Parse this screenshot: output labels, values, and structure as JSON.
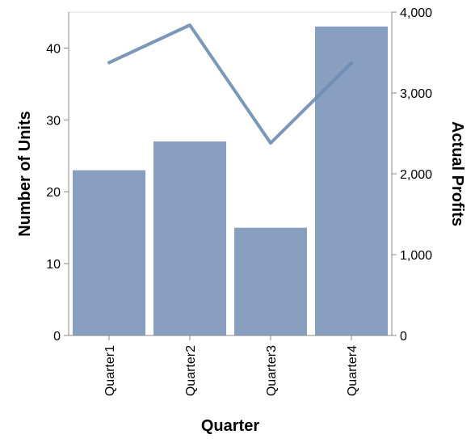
{
  "chart_data": {
    "type": "bar+line",
    "categories": [
      "Quarter1",
      "Quarter2",
      "Quarter3",
      "Quarter4"
    ],
    "series": [
      {
        "values": [
          23,
          27,
          15,
          43
        ],
        "axis": "left",
        "mark": "bar"
      },
      {
        "values": [
          3375,
          3840,
          2380,
          3370
        ],
        "axis": "right",
        "mark": "line"
      }
    ],
    "xlabel": "Quarter",
    "ylabel_left": "Number of Units",
    "ylabel_right": "Actual Profits",
    "ylim_left": [
      0,
      45
    ],
    "ylim_right": [
      0,
      4000
    ],
    "yticks_left": [
      0,
      10,
      20,
      30,
      40
    ],
    "yticks_right": [
      0,
      1000,
      2000,
      3000,
      4000
    ],
    "ytick_labels_left": [
      "0",
      "10",
      "20",
      "30",
      "40"
    ],
    "ytick_labels_right": [
      "0",
      "1,000",
      "2,000",
      "3,000",
      "4,000"
    ],
    "colors": {
      "bar": "#889fc0",
      "line": "#6e8cb3"
    },
    "grid": false
  }
}
